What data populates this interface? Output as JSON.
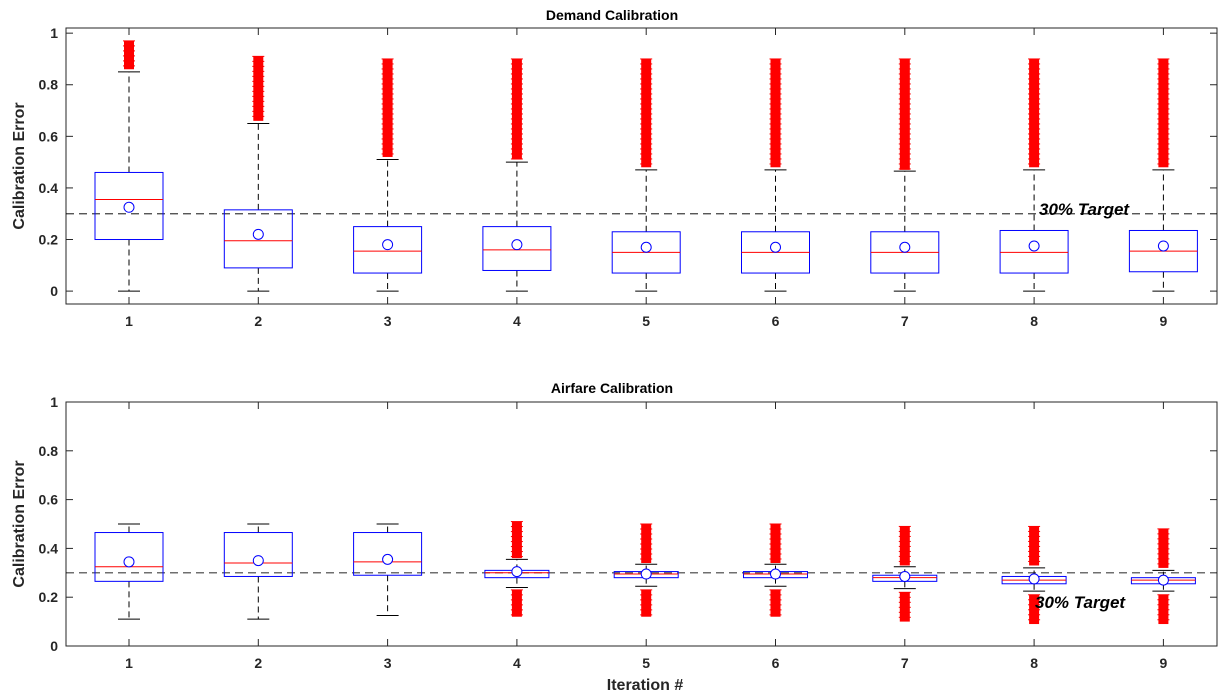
{
  "chart_data": [
    {
      "type": "box",
      "title": "Demand Calibration",
      "xlabel": "",
      "ylabel": "Calibration Error",
      "categories": [
        "1",
        "2",
        "3",
        "4",
        "5",
        "6",
        "7",
        "8",
        "9"
      ],
      "ylim": [
        -0.05,
        1.02
      ],
      "yticks": [
        0,
        0.2,
        0.4,
        0.6,
        0.8,
        1
      ],
      "target": {
        "value": 0.3,
        "label": "30% Target"
      },
      "boxes": [
        {
          "min": 0,
          "q1": 0.2,
          "median": 0.355,
          "q3": 0.46,
          "max": 0.85,
          "mean": 0.325,
          "outliers": [
            0.86,
            0.97
          ]
        },
        {
          "min": 0,
          "q1": 0.09,
          "median": 0.195,
          "q3": 0.315,
          "max": 0.65,
          "mean": 0.22,
          "outliers": [
            0.66,
            0.91
          ]
        },
        {
          "min": 0,
          "q1": 0.07,
          "median": 0.155,
          "q3": 0.25,
          "max": 0.51,
          "mean": 0.18,
          "outliers": [
            0.52,
            0.9
          ]
        },
        {
          "min": 0,
          "q1": 0.08,
          "median": 0.16,
          "q3": 0.25,
          "max": 0.5,
          "mean": 0.18,
          "outliers": [
            0.51,
            0.9
          ]
        },
        {
          "min": 0,
          "q1": 0.07,
          "median": 0.15,
          "q3": 0.23,
          "max": 0.47,
          "mean": 0.17,
          "outliers": [
            0.48,
            0.9
          ]
        },
        {
          "min": 0,
          "q1": 0.07,
          "median": 0.15,
          "q3": 0.23,
          "max": 0.47,
          "mean": 0.17,
          "outliers": [
            0.48,
            0.9
          ]
        },
        {
          "min": 0,
          "q1": 0.07,
          "median": 0.15,
          "q3": 0.23,
          "max": 0.465,
          "mean": 0.17,
          "outliers": [
            0.47,
            0.9
          ]
        },
        {
          "min": 0,
          "q1": 0.07,
          "median": 0.15,
          "q3": 0.235,
          "max": 0.47,
          "mean": 0.175,
          "outliers": [
            0.48,
            0.9
          ]
        },
        {
          "min": 0,
          "q1": 0.075,
          "median": 0.155,
          "q3": 0.235,
          "max": 0.47,
          "mean": 0.175,
          "outliers": [
            0.48,
            0.9
          ]
        }
      ]
    },
    {
      "type": "box",
      "title": "Airfare Calibration",
      "xlabel": "Iteration #",
      "ylabel": "Calibration Error",
      "categories": [
        "1",
        "2",
        "3",
        "4",
        "5",
        "6",
        "7",
        "8",
        "9"
      ],
      "ylim": [
        0,
        1
      ],
      "yticks": [
        0,
        0.2,
        0.4,
        0.6,
        0.8,
        1
      ],
      "target": {
        "value": 0.3,
        "label": "30% Target"
      },
      "boxes": [
        {
          "min": 0.11,
          "q1": 0.265,
          "median": 0.325,
          "q3": 0.465,
          "max": 0.5,
          "mean": 0.345,
          "outliers": []
        },
        {
          "min": 0.11,
          "q1": 0.285,
          "median": 0.34,
          "q3": 0.465,
          "max": 0.5,
          "mean": 0.35,
          "outliers": []
        },
        {
          "min": 0.125,
          "q1": 0.29,
          "median": 0.345,
          "q3": 0.465,
          "max": 0.5,
          "mean": 0.355,
          "outliers": []
        },
        {
          "min": 0.24,
          "q1": 0.28,
          "median": 0.3,
          "q3": 0.31,
          "max": 0.355,
          "mean": 0.305,
          "outliers": [
            0.12,
            0.23,
            0.36,
            0.51
          ]
        },
        {
          "min": 0.245,
          "q1": 0.28,
          "median": 0.295,
          "q3": 0.305,
          "max": 0.335,
          "mean": 0.295,
          "outliers": [
            0.12,
            0.23,
            0.34,
            0.5
          ]
        },
        {
          "min": 0.245,
          "q1": 0.28,
          "median": 0.295,
          "q3": 0.305,
          "max": 0.335,
          "mean": 0.295,
          "outliers": [
            0.12,
            0.23,
            0.34,
            0.5
          ]
        },
        {
          "min": 0.235,
          "q1": 0.265,
          "median": 0.28,
          "q3": 0.29,
          "max": 0.325,
          "mean": 0.285,
          "outliers": [
            0.1,
            0.22,
            0.33,
            0.49
          ]
        },
        {
          "min": 0.225,
          "q1": 0.255,
          "median": 0.27,
          "q3": 0.285,
          "max": 0.32,
          "mean": 0.275,
          "outliers": [
            0.09,
            0.21,
            0.33,
            0.49
          ]
        },
        {
          "min": 0.225,
          "q1": 0.255,
          "median": 0.27,
          "q3": 0.28,
          "max": 0.31,
          "mean": 0.27,
          "outliers": [
            0.09,
            0.21,
            0.32,
            0.48
          ]
        }
      ]
    }
  ],
  "colors": {
    "box": "#0000ff",
    "median": "#ff0000",
    "whisker": "#000000",
    "outlier": "#ff0000",
    "mean_marker": "#0000ff",
    "target_line": "#000000",
    "axis": "#262626",
    "grid": "#e6e6e6"
  }
}
